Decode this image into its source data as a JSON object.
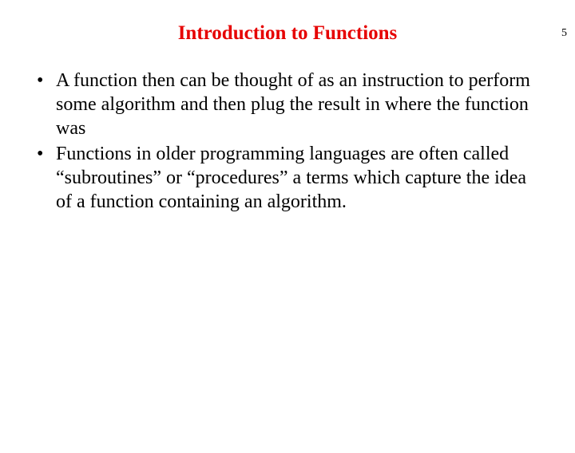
{
  "page_number": "5",
  "title": {
    "text": "Introduction to Functions",
    "color": "#e60000"
  },
  "bullets": [
    "A function then can be thought of as an instruction to perform some algorithm and then plug the result in where the function was",
    "Functions in older programming languages are often called “subroutines” or “procedures” a terms which capture the idea of a function containing an algorithm."
  ],
  "colors": {
    "background": "#ffffff",
    "body_text": "#000000"
  }
}
